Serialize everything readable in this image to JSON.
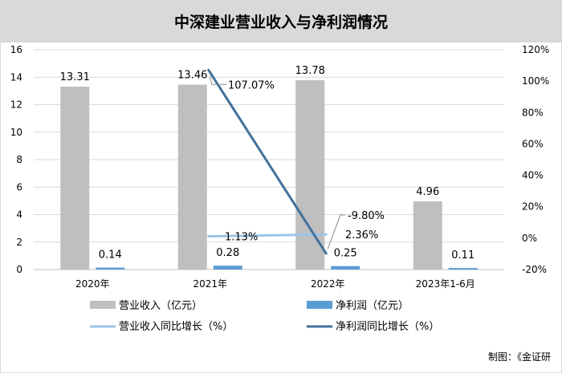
{
  "chart_data": {
    "type": "bar",
    "title": "中深建业营业收入与净利润情况",
    "categories": [
      "2020年",
      "2021年",
      "2022年",
      "2023年1-6月"
    ],
    "left_axis": {
      "ylim": [
        0,
        16
      ],
      "ticks": [
        "0",
        "2",
        "4",
        "6",
        "8",
        "10",
        "12",
        "14",
        "16"
      ]
    },
    "right_axis": {
      "ylim": [
        -20,
        120
      ],
      "ticks": [
        "-20%",
        "0%",
        "20%",
        "40%",
        "60%",
        "80%",
        "100%",
        "120%"
      ]
    },
    "grid": true,
    "legend_position": "bottom",
    "series": [
      {
        "name": "营业收入（亿元）",
        "kind": "bar",
        "axis": "left",
        "color": "#bfbfbf",
        "values": [
          13.31,
          13.46,
          13.78,
          4.96
        ],
        "labels": [
          "13.31",
          "13.46",
          "13.78",
          "4.96"
        ]
      },
      {
        "name": "净利润（亿元）",
        "kind": "bar",
        "axis": "left",
        "color": "#5b9bd5",
        "values": [
          0.14,
          0.28,
          0.25,
          0.11
        ],
        "labels": [
          "0.14",
          "0.28",
          "0.25",
          "0.11"
        ]
      },
      {
        "name": "营业收入同比增长（%）",
        "kind": "line",
        "axis": "right",
        "color": "#9dc3e6",
        "values": [
          null,
          1.13,
          2.36,
          null
        ],
        "labels": [
          null,
          "1.13%",
          "2.36%",
          null
        ]
      },
      {
        "name": "净利润同比增长（%）",
        "kind": "line",
        "axis": "right",
        "color": "#41719c",
        "values": [
          null,
          107.07,
          -9.8,
          null
        ],
        "labels": [
          null,
          "107.07%",
          "-9.80%",
          null
        ]
      }
    ]
  },
  "credit": "制图：《金证研"
}
